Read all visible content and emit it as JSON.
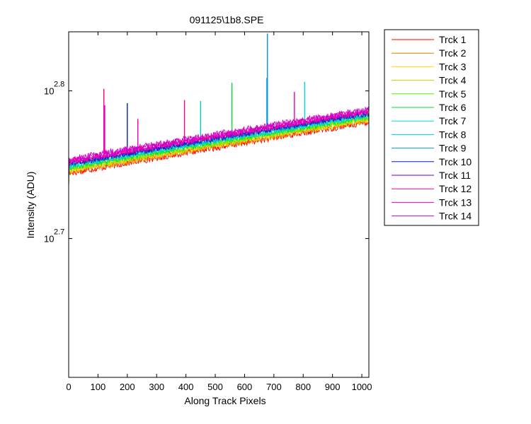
{
  "chart_data": {
    "type": "line",
    "title": "091125\\1b8.SPE",
    "xlabel": "Along Track Pixels",
    "ylabel": "Intensity (ADU)",
    "xlim": [
      0,
      1024
    ],
    "ylim_log10": [
      2.606,
      2.84
    ],
    "yscale": "log",
    "grid": false,
    "legend_position": "outside-right",
    "x_ticks": [
      {
        "value": 0,
        "label": "0"
      },
      {
        "value": 100,
        "label": "100"
      },
      {
        "value": 200,
        "label": "200"
      },
      {
        "value": 300,
        "label": "300"
      },
      {
        "value": 400,
        "label": "400"
      },
      {
        "value": 500,
        "label": "500"
      },
      {
        "value": 600,
        "label": "600"
      },
      {
        "value": 700,
        "label": "700"
      },
      {
        "value": 800,
        "label": "800"
      },
      {
        "value": 900,
        "label": "900"
      },
      {
        "value": 1000,
        "label": "1000"
      }
    ],
    "y_ticks": [
      {
        "exp_value": 2.7,
        "base": "10",
        "exponent": "2.7"
      },
      {
        "exp_value": 2.8,
        "base": "10",
        "exponent": "2.8"
      }
    ],
    "series": [
      {
        "name": "Trck 1",
        "color": "#ff0000",
        "start": 555,
        "end": 601,
        "noise": 6,
        "spikes": []
      },
      {
        "name": "Trck 2",
        "color": "#ee7700",
        "start": 556,
        "end": 602,
        "noise": 6,
        "spikes": []
      },
      {
        "name": "Trck 3",
        "color": "#ffdd00",
        "start": 557,
        "end": 603,
        "noise": 5,
        "spikes": []
      },
      {
        "name": "Trck 4",
        "color": "#aadd00",
        "start": 558,
        "end": 604,
        "noise": 5,
        "spikes": []
      },
      {
        "name": "Trck 5",
        "color": "#55ee00",
        "start": 559,
        "end": 605,
        "noise": 5,
        "spikes": []
      },
      {
        "name": "Trck 6",
        "color": "#00dd33",
        "start": 560,
        "end": 606,
        "noise": 5,
        "spikes": [
          {
            "x": 557,
            "y": 639
          }
        ]
      },
      {
        "name": "Trck 7",
        "color": "#00dddd",
        "start": 561,
        "end": 607,
        "noise": 5,
        "spikes": [
          {
            "x": 805,
            "y": 640
          }
        ]
      },
      {
        "name": "Trck 8",
        "color": "#00cccc",
        "start": 562,
        "end": 608,
        "noise": 5,
        "spikes": [
          {
            "x": 450,
            "y": 621
          }
        ]
      },
      {
        "name": "Trck 9",
        "color": "#0099dd",
        "start": 563,
        "end": 609,
        "noise": 5,
        "spikes": [
          {
            "x": 678,
            "y": 690
          },
          {
            "x": 676,
            "y": 644
          }
        ]
      },
      {
        "name": "Trck 10",
        "color": "#0022bb",
        "start": 563,
        "end": 609,
        "noise": 5,
        "spikes": [
          {
            "x": 200,
            "y": 619
          }
        ]
      },
      {
        "name": "Trck 11",
        "color": "#6600cc",
        "start": 564,
        "end": 610,
        "noise": 5,
        "spikes": []
      },
      {
        "name": "Trck 12",
        "color": "#ff0099",
        "start": 565,
        "end": 611,
        "noise": 5,
        "spikes": [
          {
            "x": 120,
            "y": 633
          },
          {
            "x": 395,
            "y": 622
          }
        ]
      },
      {
        "name": "Trck 13",
        "color": "#ee00bb",
        "start": 566,
        "end": 612,
        "noise": 6,
        "spikes": [
          {
            "x": 770,
            "y": 630
          },
          {
            "x": 236,
            "y": 604
          }
        ]
      },
      {
        "name": "Trck 14",
        "color": "#cc00cc",
        "start": 567,
        "end": 613,
        "noise": 6,
        "spikes": [
          {
            "x": 123,
            "y": 617
          }
        ]
      }
    ]
  }
}
